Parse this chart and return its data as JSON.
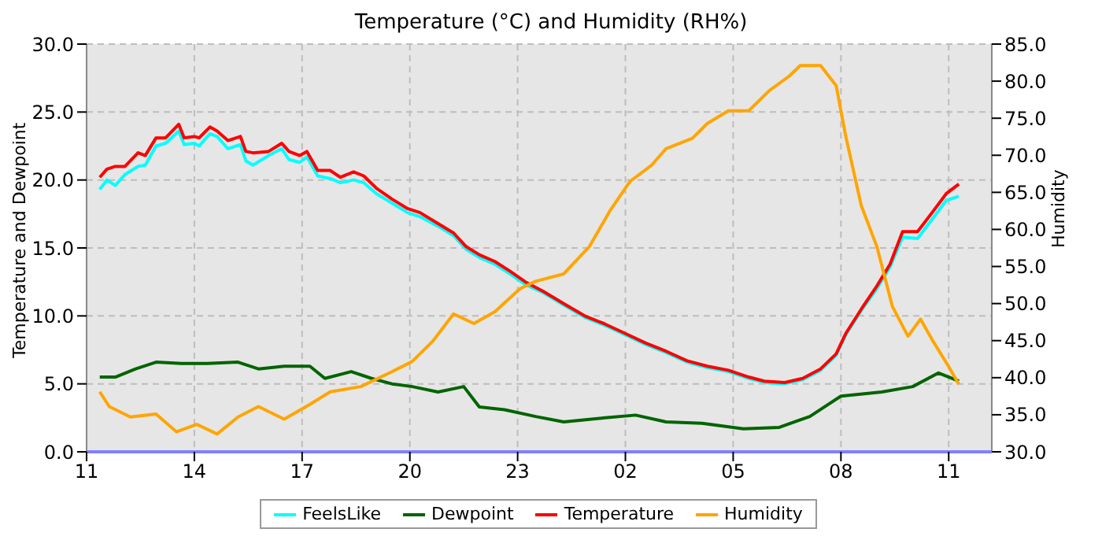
{
  "chart_data": {
    "type": "line",
    "title": "Temperature (°C) and Humidity (RH%)",
    "ylabel": "Temperature and Dewpoint",
    "y2label": "Humidity",
    "xlim": [
      "--01-01T11:00",
      "--01-02T12:12"
    ],
    "xticks": [
      {
        "value": "--01-01T11:00",
        "label": "11"
      },
      {
        "value": "--01-01T14:00",
        "label": "14"
      },
      {
        "value": "--01-01T17:00",
        "label": "17"
      },
      {
        "value": "--01-01T20:00",
        "label": "20"
      },
      {
        "value": "--01-01T23:00",
        "label": "23"
      },
      {
        "value": "--01-02T02:00",
        "label": "02"
      },
      {
        "value": "--01-02T05:00",
        "label": "05"
      },
      {
        "value": "--01-02T08:00",
        "label": "08"
      },
      {
        "value": "--01-02T11:00",
        "label": "11"
      }
    ],
    "ylim": [
      0,
      30
    ],
    "yticks": [
      {
        "value": 0,
        "label": "0.0"
      },
      {
        "value": 5,
        "label": "5.0"
      },
      {
        "value": 10,
        "label": "10.0"
      },
      {
        "value": 15,
        "label": "15.0"
      },
      {
        "value": 20,
        "label": "20.0"
      },
      {
        "value": 25,
        "label": "25.0"
      },
      {
        "value": 30,
        "label": "30.0"
      }
    ],
    "y2lim": [
      30,
      85
    ],
    "y2ticks": [
      {
        "value": 30,
        "label": "30.0"
      },
      {
        "value": 35,
        "label": "35.0"
      },
      {
        "value": 40,
        "label": "40.0"
      },
      {
        "value": 45,
        "label": "45.0"
      },
      {
        "value": 50,
        "label": "50.0"
      },
      {
        "value": 55,
        "label": "55.0"
      },
      {
        "value": 60,
        "label": "60.0"
      },
      {
        "value": 65,
        "label": "65.0"
      },
      {
        "value": 70,
        "label": "70.0"
      },
      {
        "value": 75,
        "label": "75.0"
      },
      {
        "value": 80,
        "label": "80.0"
      },
      {
        "value": 85,
        "label": "85.0"
      }
    ],
    "grid": true,
    "legend": "bottom",
    "marker": "none",
    "line_style": "solid",
    "series": [
      {
        "name": "FeelsLike",
        "color": "#00ffff",
        "x": [
          "--01-01T11:22",
          "--01-01T11:34",
          "--01-01T11:48",
          "--01-01T12:04",
          "--01-01T12:26",
          "--01-01T12:38",
          "--01-01T12:56",
          "--01-01T13:12",
          "--01-01T13:34",
          "--01-01T13:43",
          "--01-01T14:00",
          "--01-01T14:08",
          "--01-01T14:26",
          "--01-01T14:38",
          "--01-01T14:56",
          "--01-01T15:17",
          "--01-01T15:26",
          "--01-01T15:38",
          "--01-01T16:04",
          "--01-01T16:26",
          "--01-01T16:38",
          "--01-01T16:56",
          "--01-01T17:08",
          "--01-01T17:26",
          "--01-01T17:47",
          "--01-01T18:04",
          "--01-01T18:26",
          "--01-01T18:43",
          "--01-01T19:04",
          "--01-01T19:30",
          "--01-01T19:56",
          "--01-01T20:17",
          "--01-01T20:47",
          "--01-01T21:13",
          "--01-01T21:34",
          "--01-01T21:56",
          "--01-01T22:22",
          "--01-01T22:47",
          "--01-01T23:13",
          "--01-01T23:43",
          "--01-02T00:17",
          "--01-02T00:52",
          "--01-02T01:26",
          "--01-02T02:00",
          "--01-02T02:34",
          "--01-02T03:08",
          "--01-02T03:43",
          "--01-02T04:17",
          "--01-02T04:52",
          "--01-02T05:26",
          "--01-02T05:52",
          "--01-02T06:26",
          "--01-02T06:56",
          "--01-02T07:26",
          "--01-02T07:52",
          "--01-02T08:08",
          "--01-02T08:34",
          "--01-02T09:00",
          "--01-02T09:22",
          "--01-02T09:43",
          "--01-02T10:08",
          "--01-02T10:34",
          "--01-02T10:56",
          "--01-02T11:17"
        ],
        "values": [
          19.3,
          20.0,
          19.6,
          20.4,
          21.0,
          21.1,
          22.5,
          22.7,
          23.6,
          22.6,
          22.7,
          22.5,
          23.4,
          23.2,
          22.3,
          22.6,
          21.4,
          21.1,
          21.8,
          22.3,
          21.5,
          21.3,
          21.7,
          20.3,
          20.1,
          19.8,
          20.0,
          19.8,
          19.0,
          18.3,
          17.6,
          17.3,
          16.6,
          15.9,
          14.9,
          14.3,
          13.8,
          13.1,
          12.3,
          11.7,
          10.8,
          9.9,
          9.3,
          8.6,
          7.9,
          7.3,
          6.6,
          6.2,
          5.9,
          5.4,
          5.1,
          5.0,
          5.3,
          6.0,
          7.1,
          8.6,
          10.4,
          12.0,
          13.6,
          15.8,
          15.7,
          17.2,
          18.5,
          18.8
        ]
      },
      {
        "name": "Dewpoint",
        "color": "#006400",
        "x": [
          "--01-01T11:22",
          "--01-01T11:48",
          "--01-01T12:22",
          "--01-01T12:56",
          "--01-01T13:38",
          "--01-01T14:22",
          "--01-01T15:13",
          "--01-01T15:47",
          "--01-01T16:30",
          "--01-01T17:13",
          "--01-01T17:38",
          "--01-01T18:22",
          "--01-01T18:56",
          "--01-01T19:30",
          "--01-01T20:04",
          "--01-01T20:47",
          "--01-01T21:30",
          "--01-01T21:56",
          "--01-01T22:38",
          "--01-01T23:30",
          "--01-02T00:17",
          "--01-02T01:26",
          "--01-02T02:17",
          "--01-02T03:08",
          "--01-02T04:08",
          "--01-02T05:17",
          "--01-02T06:17",
          "--01-02T07:08",
          "--01-02T08:00",
          "--01-02T09:08",
          "--01-02T10:00",
          "--01-02T10:43",
          "--01-02T11:17"
        ],
        "values": [
          5.5,
          5.5,
          6.1,
          6.6,
          6.5,
          6.5,
          6.6,
          6.1,
          6.3,
          6.3,
          5.4,
          5.9,
          5.4,
          5.0,
          4.8,
          4.4,
          4.8,
          3.3,
          3.1,
          2.6,
          2.2,
          2.5,
          2.7,
          2.2,
          2.1,
          1.7,
          1.8,
          2.6,
          4.1,
          4.4,
          4.8,
          5.8,
          5.2
        ]
      },
      {
        "name": "Temperature",
        "color": "#ff0000",
        "x": [
          "--01-01T11:22",
          "--01-01T11:34",
          "--01-01T11:48",
          "--01-01T12:04",
          "--01-01T12:26",
          "--01-01T12:38",
          "--01-01T12:56",
          "--01-01T13:12",
          "--01-01T13:34",
          "--01-01T13:43",
          "--01-01T14:00",
          "--01-01T14:08",
          "--01-01T14:26",
          "--01-01T14:38",
          "--01-01T14:56",
          "--01-01T15:17",
          "--01-01T15:26",
          "--01-01T15:38",
          "--01-01T16:04",
          "--01-01T16:26",
          "--01-01T16:38",
          "--01-01T16:56",
          "--01-01T17:08",
          "--01-01T17:26",
          "--01-01T17:47",
          "--01-01T18:04",
          "--01-01T18:26",
          "--01-01T18:43",
          "--01-01T19:04",
          "--01-01T19:30",
          "--01-01T19:56",
          "--01-01T20:17",
          "--01-01T20:47",
          "--01-01T21:13",
          "--01-01T21:34",
          "--01-01T21:56",
          "--01-01T22:22",
          "--01-01T22:47",
          "--01-01T23:13",
          "--01-01T23:43",
          "--01-02T00:17",
          "--01-02T00:52",
          "--01-02T01:26",
          "--01-02T02:00",
          "--01-02T02:34",
          "--01-02T03:08",
          "--01-02T03:43",
          "--01-02T04:17",
          "--01-02T04:52",
          "--01-02T05:26",
          "--01-02T05:52",
          "--01-02T06:26",
          "--01-02T06:56",
          "--01-02T07:26",
          "--01-02T07:52",
          "--01-02T08:08",
          "--01-02T08:34",
          "--01-02T09:00",
          "--01-02T09:22",
          "--01-02T09:43",
          "--01-02T10:08",
          "--01-02T10:34",
          "--01-02T10:56",
          "--01-02T11:17"
        ],
        "values": [
          20.2,
          20.8,
          21.0,
          21.0,
          22.0,
          21.8,
          23.1,
          23.1,
          24.1,
          23.1,
          23.2,
          23.1,
          23.9,
          23.6,
          22.9,
          23.2,
          22.1,
          22.0,
          22.1,
          22.7,
          22.1,
          21.8,
          22.1,
          20.7,
          20.7,
          20.2,
          20.6,
          20.3,
          19.4,
          18.6,
          17.9,
          17.6,
          16.8,
          16.1,
          15.1,
          14.5,
          14.0,
          13.3,
          12.5,
          11.8,
          10.9,
          10.0,
          9.4,
          8.7,
          8.0,
          7.4,
          6.7,
          6.3,
          6.0,
          5.5,
          5.2,
          5.1,
          5.4,
          6.1,
          7.2,
          8.7,
          10.5,
          12.2,
          13.8,
          16.2,
          16.2,
          17.7,
          19.0,
          19.7
        ]
      },
      {
        "name": "Humidity",
        "color": "#ffa500",
        "axis": "y2",
        "x": [
          "--01-01T11:22",
          "--01-01T11:38",
          "--01-01T12:13",
          "--01-01T12:56",
          "--01-01T13:30",
          "--01-01T14:04",
          "--01-01T14:38",
          "--01-01T15:13",
          "--01-01T15:47",
          "--01-01T16:30",
          "--01-01T17:13",
          "--01-01T17:47",
          "--01-01T18:38",
          "--01-01T19:30",
          "--01-01T20:04",
          "--01-01T20:38",
          "--01-01T21:13",
          "--01-01T21:47",
          "--01-01T22:22",
          "--01-01T23:04",
          "--01-01T23:30",
          "--01-02T00:17",
          "--01-02T01:00",
          "--01-02T01:34",
          "--01-02T02:08",
          "--01-02T02:43",
          "--01-02T03:08",
          "--01-02T03:52",
          "--01-02T04:17",
          "--01-02T04:52",
          "--01-02T05:26",
          "--01-02T06:00",
          "--01-02T06:34",
          "--01-02T06:52",
          "--01-02T07:26",
          "--01-02T07:52",
          "--01-02T08:08",
          "--01-02T08:34",
          "--01-02T09:00",
          "--01-02T09:26",
          "--01-02T09:52",
          "--01-02T10:13",
          "--01-02T10:34",
          "--01-02T11:00",
          "--01-02T11:17"
        ],
        "values": [
          38.1,
          36.1,
          34.7,
          35.1,
          32.7,
          33.7,
          32.4,
          34.7,
          36.1,
          34.4,
          36.4,
          38.1,
          38.8,
          40.8,
          42.2,
          44.9,
          48.6,
          47.3,
          48.9,
          52.0,
          53.0,
          54.0,
          57.7,
          62.5,
          66.5,
          68.6,
          70.9,
          72.3,
          74.3,
          76.0,
          76.0,
          78.7,
          80.7,
          82.1,
          82.1,
          79.4,
          72.6,
          63.2,
          57.7,
          49.6,
          45.6,
          47.9,
          44.9,
          41.5,
          39.1
        ]
      }
    ]
  }
}
